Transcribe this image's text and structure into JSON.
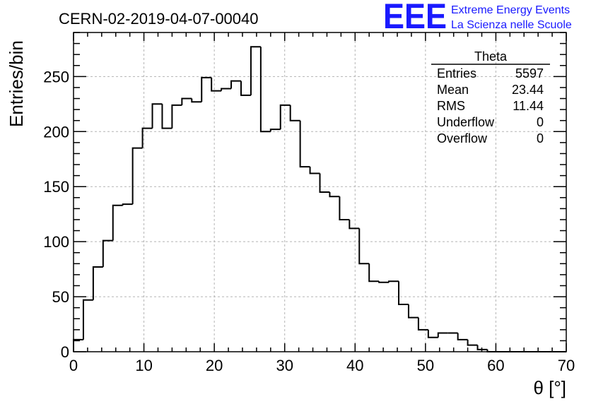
{
  "title": "CERN-02-2019-04-07-00040",
  "brand": {
    "logo": "EEE",
    "line1": "Extreme Energy Events",
    "line2": "La Scienza nelle Scuole",
    "color": "#1a1aff"
  },
  "stats_box": {
    "name": "Theta",
    "rows": [
      {
        "label": "Entries",
        "value": "5597"
      },
      {
        "label": "Mean",
        "value": "23.44"
      },
      {
        "label": "RMS",
        "value": "11.44"
      },
      {
        "label": "Underflow",
        "value": "0"
      },
      {
        "label": "Overflow",
        "value": "0"
      }
    ]
  },
  "chart_data": {
    "type": "bar",
    "subtype": "step-histogram",
    "xlabel": "θ [°]",
    "ylabel": "Entries/bin",
    "xlim": [
      0,
      70
    ],
    "ylim": [
      0,
      290
    ],
    "x_ticks": [
      0,
      10,
      20,
      30,
      40,
      50,
      60,
      70
    ],
    "y_ticks": [
      0,
      50,
      100,
      150,
      200,
      250
    ],
    "grid": true,
    "bin_width": 1.4,
    "bin_edges_start": 0,
    "values": [
      11,
      47,
      77,
      101,
      133,
      134,
      185,
      203,
      225,
      203,
      224,
      230,
      227,
      249,
      237,
      239,
      246,
      233,
      277,
      200,
      202,
      224,
      210,
      168,
      162,
      145,
      141,
      120,
      112,
      80,
      64,
      63,
      64,
      43,
      31,
      20,
      13,
      17,
      17,
      11,
      6,
      2,
      0,
      0,
      0,
      0,
      0,
      0,
      0,
      0
    ],
    "line_color": "#000000",
    "grid_color": "#b4b4b4"
  }
}
